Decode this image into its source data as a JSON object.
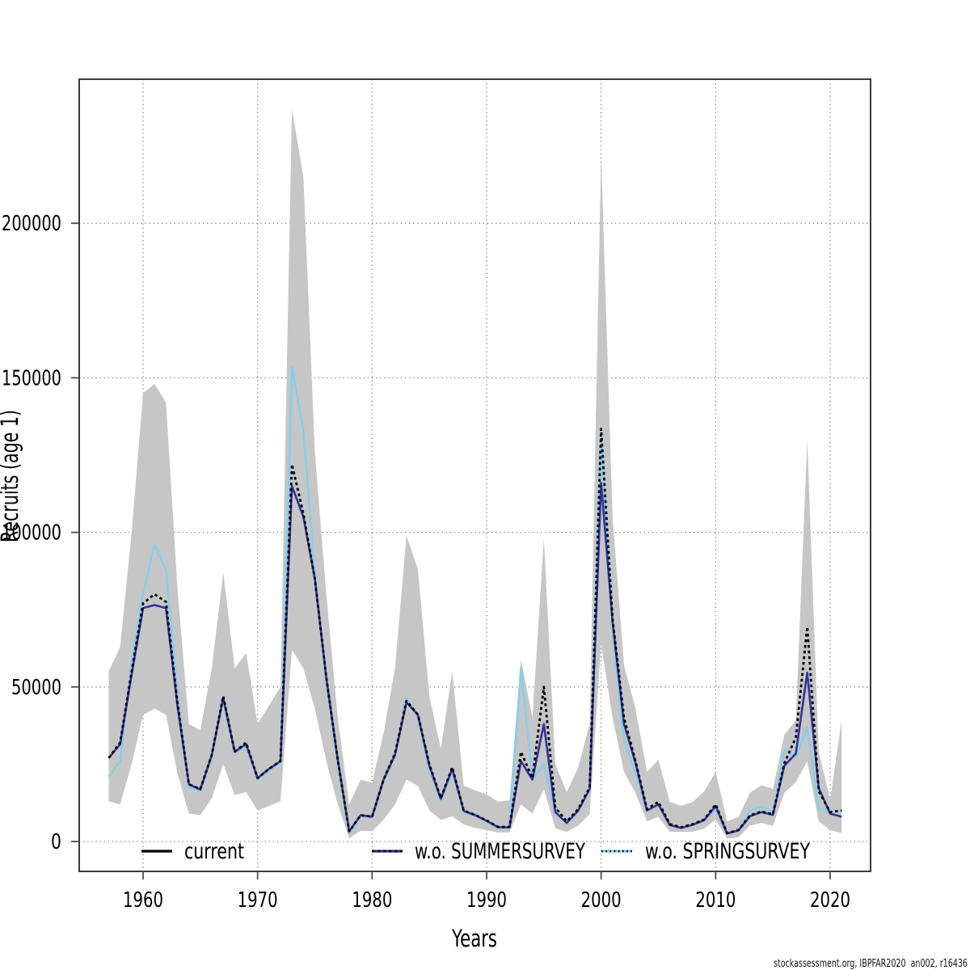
{
  "chart_data": {
    "type": "line",
    "title": "",
    "xlabel": "Years",
    "ylabel": "Recruits (age 1)",
    "x_ticks": [
      1960,
      1970,
      1980,
      1990,
      2000,
      2010,
      2020
    ],
    "y_ticks": [
      0,
      50000,
      100000,
      150000,
      200000
    ],
    "xlim": [
      1954.4,
      2023.5
    ],
    "ylim": [
      -9700,
      246600
    ],
    "grid": "dotted-gray-at-ticks",
    "legend_position": "bottom-inside-horizontal",
    "years": [
      1957,
      1958,
      1959,
      1960,
      1961,
      1962,
      1963,
      1964,
      1965,
      1966,
      1967,
      1968,
      1969,
      1970,
      1971,
      1972,
      1973,
      1974,
      1975,
      1976,
      1977,
      1978,
      1979,
      1980,
      1981,
      1982,
      1983,
      1984,
      1985,
      1986,
      1987,
      1988,
      1989,
      1990,
      1991,
      1992,
      1993,
      1994,
      1995,
      1996,
      1997,
      1998,
      1999,
      2000,
      2001,
      2002,
      2003,
      2004,
      2005,
      2006,
      2007,
      2008,
      2009,
      2010,
      2011,
      2012,
      2013,
      2014,
      2015,
      2016,
      2017,
      2018,
      2019,
      2020,
      2021
    ],
    "series": [
      {
        "name": "current",
        "color": "#000000",
        "style": "dotted",
        "values": [
          27000,
          32000,
          55000,
          77000,
          80000,
          77500,
          45000,
          18500,
          17000,
          28000,
          47000,
          29000,
          32000,
          20500,
          23500,
          26000,
          122000,
          106000,
          85000,
          53000,
          26500,
          3300,
          8500,
          8000,
          20000,
          28500,
          45500,
          41000,
          25000,
          14000,
          24000,
          10000,
          8600,
          6800,
          4700,
          4700,
          29000,
          20500,
          50000,
          11000,
          6500,
          10500,
          17500,
          133500,
          72000,
          40000,
          26000,
          10500,
          12800,
          5600,
          4600,
          5600,
          7100,
          12000,
          2700,
          3700,
          8400,
          9700,
          8800,
          25300,
          33600,
          69500,
          16300,
          9500,
          10000
        ]
      },
      {
        "name": "w.o. SUMMERSURVEY",
        "color": "#333399",
        "style": "solid",
        "values": [
          27000,
          31500,
          54000,
          75500,
          76500,
          75500,
          44000,
          18500,
          16800,
          28000,
          46500,
          29000,
          31500,
          20500,
          23500,
          26000,
          115000,
          105000,
          85000,
          53000,
          26500,
          3300,
          8500,
          8000,
          20000,
          28000,
          45000,
          41000,
          24500,
          13800,
          23500,
          9900,
          8500,
          6700,
          4600,
          4600,
          26000,
          20000,
          38000,
          9500,
          6000,
          10000,
          17000,
          116000,
          71000,
          38000,
          25500,
          10000,
          12000,
          5300,
          4400,
          5400,
          6900,
          11500,
          2600,
          3600,
          8200,
          9500,
          8600,
          24500,
          28400,
          54600,
          17300,
          9000,
          8000
        ]
      },
      {
        "name": "w.o. SPRINGSURVEY",
        "color": "#87CEEB",
        "style": "solid",
        "values": [
          21000,
          26000,
          58000,
          80000,
          96000,
          88000,
          48000,
          17500,
          16300,
          27500,
          46000,
          28500,
          31000,
          20000,
          23000,
          25500,
          153500,
          133000,
          86000,
          52000,
          25500,
          2500,
          8200,
          7800,
          19500,
          28000,
          46500,
          40000,
          23500,
          13000,
          22500,
          9600,
          8300,
          6500,
          4400,
          4400,
          56000,
          20000,
          25000,
          9000,
          6000,
          10000,
          17000,
          131000,
          68000,
          33000,
          22000,
          10000,
          12300,
          5300,
          4400,
          5400,
          6900,
          10500,
          2400,
          3400,
          10000,
          11200,
          9500,
          29600,
          27500,
          37000,
          10700,
          10000,
          10000
        ]
      }
    ],
    "band": {
      "series": "current",
      "color": "#C6C6C6",
      "upper": [
        55000,
        63000,
        100000,
        145000,
        148000,
        142000,
        82000,
        38000,
        36000,
        56000,
        87000,
        56000,
        61000,
        38000,
        44000,
        50000,
        237000,
        215000,
        126000,
        80000,
        40000,
        12000,
        20000,
        19000,
        35000,
        56000,
        99000,
        88000,
        47000,
        30000,
        55000,
        18100,
        16500,
        15200,
        12900,
        13300,
        59000,
        40000,
        98000,
        25000,
        16000,
        24000,
        38000,
        222000,
        105000,
        57000,
        43000,
        22500,
        26400,
        12800,
        11500,
        12800,
        16200,
        22500,
        6500,
        7900,
        15800,
        18200,
        17000,
        34500,
        39200,
        130000,
        29000,
        13600,
        39200
      ],
      "lower": [
        13000,
        12000,
        25000,
        41000,
        43000,
        41000,
        22000,
        9000,
        8500,
        14000,
        25000,
        15000,
        16000,
        10000,
        11500,
        13000,
        62000,
        56000,
        43000,
        26000,
        12000,
        1000,
        3500,
        3300,
        7000,
        12000,
        20000,
        18000,
        10000,
        7000,
        8100,
        5500,
        4400,
        3700,
        2900,
        2900,
        12000,
        9000,
        17000,
        4200,
        3100,
        5100,
        8900,
        64000,
        40000,
        22500,
        15700,
        6500,
        8000,
        3100,
        3100,
        3100,
        4200,
        7100,
        900,
        1300,
        5100,
        6000,
        5000,
        15800,
        19100,
        26000,
        6500,
        3700,
        2700
      ]
    }
  },
  "legend": {
    "items": [
      {
        "label": "current",
        "sample": "black-solid-line"
      },
      {
        "label": "w.o. SUMMERSURVEY",
        "sample": "navy-line-with-black-dashes"
      },
      {
        "label": "w.o. SPRINGSURVEY",
        "sample": "skyblue-line-with-black-dots"
      }
    ]
  },
  "footer": {
    "credit": "stockassessment.org, IBPFAR2020  an002, r16436"
  },
  "colors": {
    "current_line": "#000000",
    "summersurvey_line": "#333399",
    "springsurvey_line": "#87CEEB",
    "confidence_band": "#C6C6C6",
    "gridline": "#808080",
    "background": "#ffffff"
  }
}
